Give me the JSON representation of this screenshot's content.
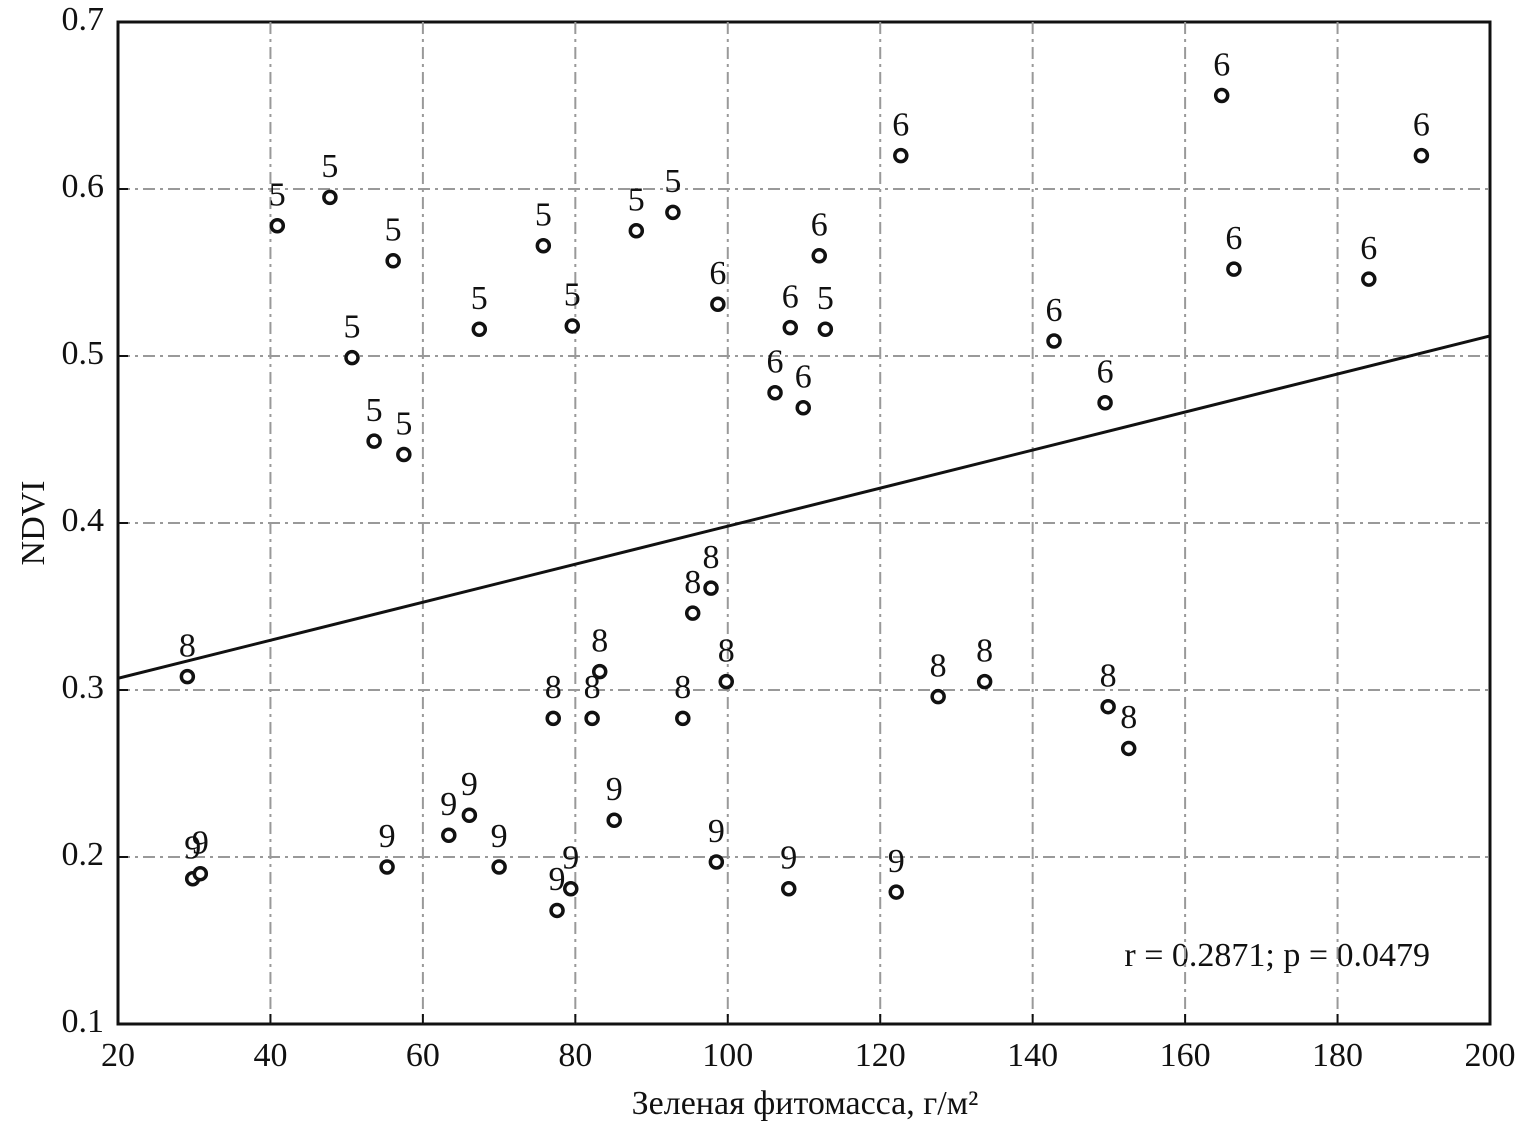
{
  "chart_data": {
    "type": "scatter",
    "xlabel": "Зеленая фитомасса, г/м²",
    "ylabel": "NDVI",
    "annotation": "r = 0.2871; p = 0.0479",
    "xlim": [
      20,
      200
    ],
    "ylim": [
      0.1,
      0.7
    ],
    "xticks": [
      20,
      40,
      60,
      80,
      100,
      120,
      140,
      160,
      180,
      200
    ],
    "yticks": [
      0.1,
      0.2,
      0.3,
      0.4,
      0.5,
      0.6,
      0.7
    ],
    "grid": true,
    "color": "#111111",
    "x": [
      164.8,
      191,
      122.7,
      112,
      166.4,
      184.1,
      98.7,
      108.2,
      142.8,
      149.5,
      106.2,
      109.9,
      40.9,
      47.8,
      56.1,
      75.8,
      88.0,
      92.8,
      67.4,
      79.6,
      112.8,
      50.7,
      53.6,
      57.5,
      29.1,
      95.4,
      97.8,
      83.2,
      77.1,
      82.2,
      94.1,
      99.8,
      127.6,
      133.7,
      149.9,
      152.6,
      29.8,
      30.8,
      55.3,
      63.4,
      66.1,
      70.0,
      85.1,
      77.6,
      79.4,
      98.5,
      108.0,
      122.1
    ],
    "values": [
      0.656,
      0.62,
      0.62,
      0.56,
      0.552,
      0.546,
      0.531,
      0.517,
      0.509,
      0.472,
      0.478,
      0.469,
      0.578,
      0.595,
      0.557,
      0.566,
      0.575,
      0.586,
      0.516,
      0.518,
      0.516,
      0.499,
      0.449,
      0.441,
      0.308,
      0.346,
      0.361,
      0.311,
      0.283,
      0.283,
      0.283,
      0.305,
      0.296,
      0.305,
      0.29,
      0.265,
      0.187,
      0.19,
      0.194,
      0.213,
      0.225,
      0.194,
      0.222,
      0.168,
      0.181,
      0.197,
      0.181,
      0.179
    ],
    "point_labels": [
      "6",
      "6",
      "6",
      "6",
      "6",
      "6",
      "6",
      "6",
      "6",
      "6",
      "6",
      "6",
      "5",
      "5",
      "5",
      "5",
      "5",
      "5",
      "5",
      "5",
      "5",
      "5",
      "5",
      "5",
      "8",
      "8",
      "8",
      "8",
      "8",
      "8",
      "8",
      "8",
      "8",
      "8",
      "8",
      "8",
      "9",
      "9",
      "9",
      "9",
      "9",
      "9",
      "9",
      "9",
      "9",
      "9",
      "9",
      "9"
    ],
    "fit_line": {
      "x": [
        20,
        200
      ],
      "values": [
        0.307,
        0.512
      ]
    }
  }
}
